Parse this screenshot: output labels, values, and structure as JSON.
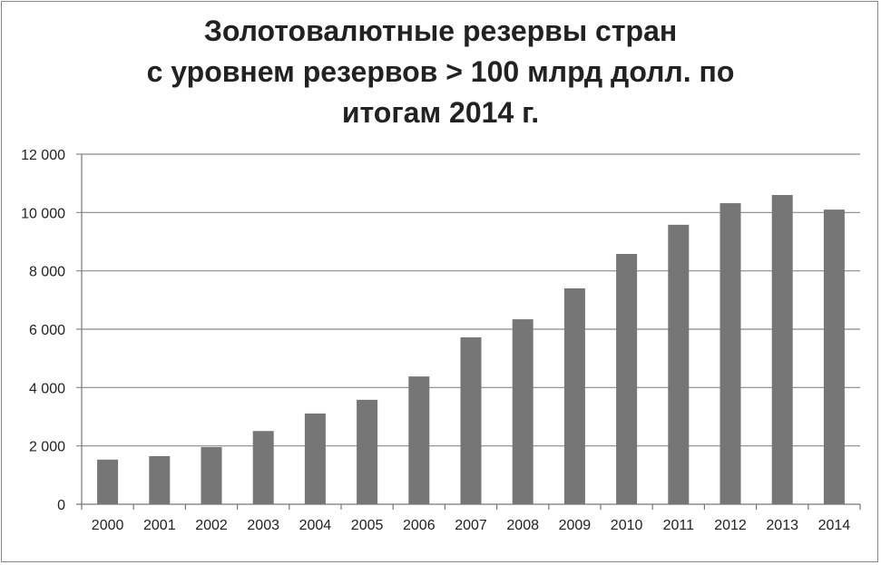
{
  "chart_data": {
    "type": "bar",
    "title_lines": [
      "Золотовалютные резервы стран",
      "с уровнем резервов > 100 млрд долл. по",
      "итогам 2014 г."
    ],
    "categories": [
      "2000",
      "2001",
      "2002",
      "2003",
      "2004",
      "2005",
      "2006",
      "2007",
      "2008",
      "2009",
      "2010",
      "2011",
      "2012",
      "2013",
      "2014"
    ],
    "values": [
      1530,
      1650,
      1960,
      2510,
      3110,
      3580,
      4380,
      5720,
      6340,
      7400,
      8580,
      9580,
      10320,
      10600,
      10100
    ],
    "ylim": [
      0,
      12000
    ],
    "yticks": [
      0,
      2000,
      4000,
      6000,
      8000,
      10000,
      12000
    ],
    "ytick_labels": [
      "0",
      "2 000",
      "4 000",
      "6 000",
      "8 000",
      "10 000",
      "12 000"
    ],
    "xlabel": "",
    "ylabel": "",
    "grid": true,
    "legend": "none",
    "bar_color": "#767676"
  }
}
